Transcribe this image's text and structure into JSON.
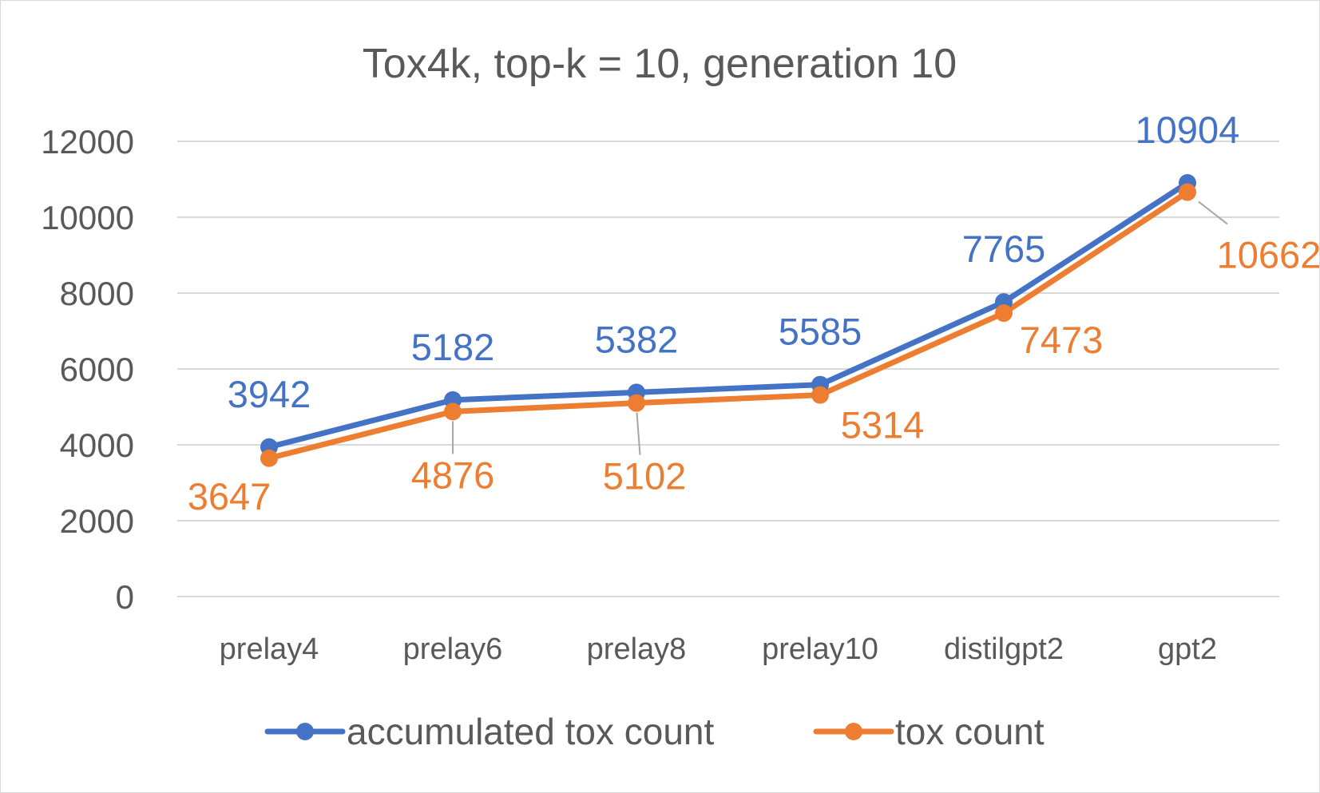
{
  "chart_data": {
    "type": "line",
    "title": "Tox4k, top-k = 10, generation 10",
    "categories": [
      "prelay4",
      "prelay6",
      "prelay8",
      "prelay10",
      "distilgpt2",
      "gpt2"
    ],
    "series": [
      {
        "name": "accumulated tox count",
        "color": "#4472C4",
        "values": [
          3942,
          5182,
          5382,
          5585,
          7765,
          10904
        ]
      },
      {
        "name": "tox count",
        "color": "#ED7D31",
        "values": [
          3647,
          4876,
          5102,
          5314,
          7473,
          10662
        ]
      }
    ],
    "yticks": [
      0,
      2000,
      4000,
      6000,
      8000,
      10000,
      12000
    ],
    "ylim": [
      0,
      12000
    ],
    "grid": true,
    "legend_position": "bottom"
  }
}
